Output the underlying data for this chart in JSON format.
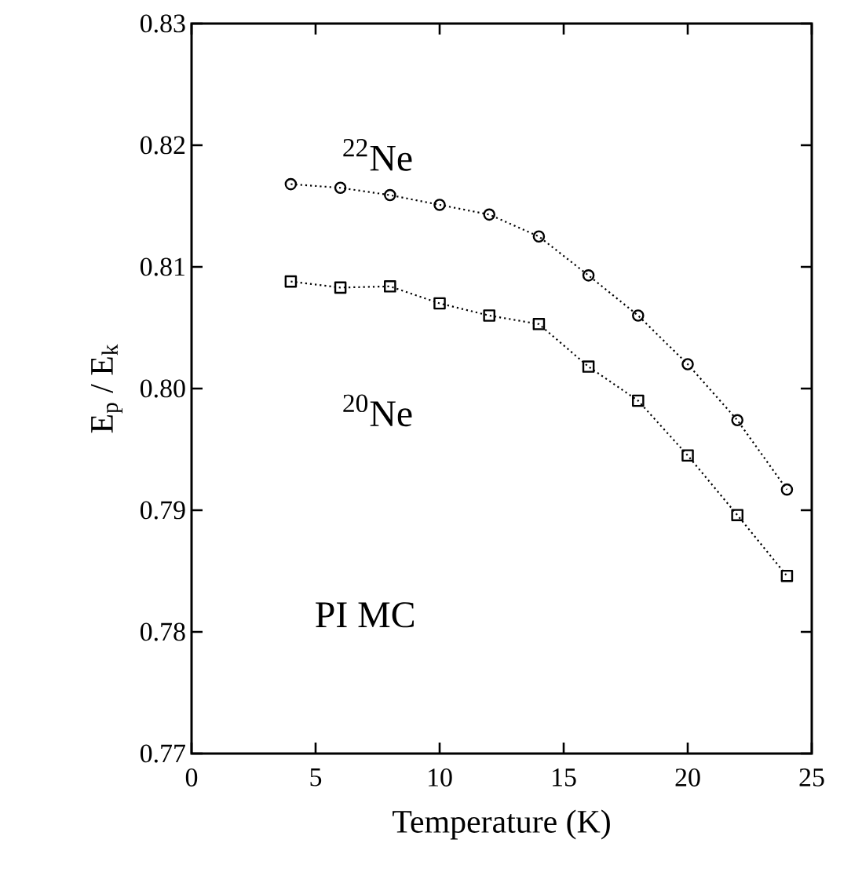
{
  "chart_data": {
    "type": "line",
    "xlabel": "Temperature  (K)",
    "ylabel": "E$_{p}$ / E$_{k}$",
    "x": [
      4,
      6,
      8,
      10,
      12,
      14,
      16,
      18,
      20,
      22,
      24
    ],
    "series": [
      {
        "color": "#000000",
        "marker": "circle",
        "values": [
          0.8168,
          0.8165,
          0.8159,
          0.8151,
          0.8143,
          0.8125,
          0.8093,
          0.806,
          0.802,
          0.7974,
          0.7917
        ]
      },
      {
        "color": "#000000",
        "marker": "square",
        "values": [
          0.8088,
          0.8083,
          0.8084,
          0.807,
          0.806,
          0.8053,
          0.8018,
          0.799,
          0.7945,
          0.7896,
          0.7846
        ]
      }
    ],
    "annotations": [
      "$^{22}$Ne",
      "$^{20}$Ne",
      "PI MC"
    ],
    "xlim": [
      0,
      25
    ],
    "ylim": [
      0.77,
      0.83
    ],
    "xticks": [
      0,
      5,
      10,
      15,
      20,
      25
    ],
    "yticks": [
      0.77,
      0.78,
      0.79,
      {
        "value": 0.8,
        "label": "0.80"
      },
      0.81,
      0.82,
      0.83
    ],
    "line_style": "dotted",
    "grid": false
  }
}
